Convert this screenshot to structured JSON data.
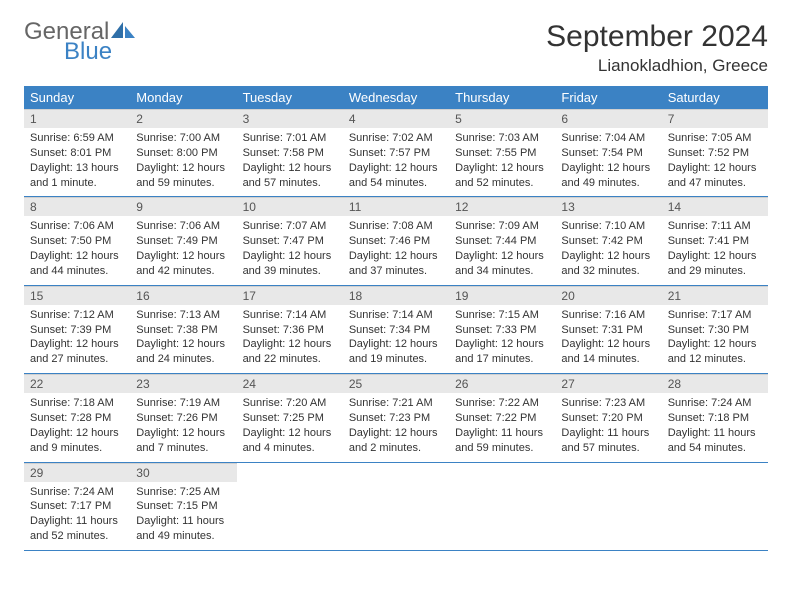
{
  "logo": {
    "line1": "General",
    "line2": "Blue"
  },
  "title": "September 2024",
  "location": "Lianokladhion, Greece",
  "colors": {
    "header_bg": "#3b82c4",
    "header_text": "#ffffff",
    "daynum_bg": "#e8e8e8",
    "rule": "#3b82c4",
    "logo_gray": "#666666",
    "logo_blue": "#3b82c4"
  },
  "weekdays": [
    "Sunday",
    "Monday",
    "Tuesday",
    "Wednesday",
    "Thursday",
    "Friday",
    "Saturday"
  ],
  "weeks": [
    [
      {
        "n": "1",
        "sr": "Sunrise: 6:59 AM",
        "ss": "Sunset: 8:01 PM",
        "dl": "Daylight: 13 hours and 1 minute."
      },
      {
        "n": "2",
        "sr": "Sunrise: 7:00 AM",
        "ss": "Sunset: 8:00 PM",
        "dl": "Daylight: 12 hours and 59 minutes."
      },
      {
        "n": "3",
        "sr": "Sunrise: 7:01 AM",
        "ss": "Sunset: 7:58 PM",
        "dl": "Daylight: 12 hours and 57 minutes."
      },
      {
        "n": "4",
        "sr": "Sunrise: 7:02 AM",
        "ss": "Sunset: 7:57 PM",
        "dl": "Daylight: 12 hours and 54 minutes."
      },
      {
        "n": "5",
        "sr": "Sunrise: 7:03 AM",
        "ss": "Sunset: 7:55 PM",
        "dl": "Daylight: 12 hours and 52 minutes."
      },
      {
        "n": "6",
        "sr": "Sunrise: 7:04 AM",
        "ss": "Sunset: 7:54 PM",
        "dl": "Daylight: 12 hours and 49 minutes."
      },
      {
        "n": "7",
        "sr": "Sunrise: 7:05 AM",
        "ss": "Sunset: 7:52 PM",
        "dl": "Daylight: 12 hours and 47 minutes."
      }
    ],
    [
      {
        "n": "8",
        "sr": "Sunrise: 7:06 AM",
        "ss": "Sunset: 7:50 PM",
        "dl": "Daylight: 12 hours and 44 minutes."
      },
      {
        "n": "9",
        "sr": "Sunrise: 7:06 AM",
        "ss": "Sunset: 7:49 PM",
        "dl": "Daylight: 12 hours and 42 minutes."
      },
      {
        "n": "10",
        "sr": "Sunrise: 7:07 AM",
        "ss": "Sunset: 7:47 PM",
        "dl": "Daylight: 12 hours and 39 minutes."
      },
      {
        "n": "11",
        "sr": "Sunrise: 7:08 AM",
        "ss": "Sunset: 7:46 PM",
        "dl": "Daylight: 12 hours and 37 minutes."
      },
      {
        "n": "12",
        "sr": "Sunrise: 7:09 AM",
        "ss": "Sunset: 7:44 PM",
        "dl": "Daylight: 12 hours and 34 minutes."
      },
      {
        "n": "13",
        "sr": "Sunrise: 7:10 AM",
        "ss": "Sunset: 7:42 PM",
        "dl": "Daylight: 12 hours and 32 minutes."
      },
      {
        "n": "14",
        "sr": "Sunrise: 7:11 AM",
        "ss": "Sunset: 7:41 PM",
        "dl": "Daylight: 12 hours and 29 minutes."
      }
    ],
    [
      {
        "n": "15",
        "sr": "Sunrise: 7:12 AM",
        "ss": "Sunset: 7:39 PM",
        "dl": "Daylight: 12 hours and 27 minutes."
      },
      {
        "n": "16",
        "sr": "Sunrise: 7:13 AM",
        "ss": "Sunset: 7:38 PM",
        "dl": "Daylight: 12 hours and 24 minutes."
      },
      {
        "n": "17",
        "sr": "Sunrise: 7:14 AM",
        "ss": "Sunset: 7:36 PM",
        "dl": "Daylight: 12 hours and 22 minutes."
      },
      {
        "n": "18",
        "sr": "Sunrise: 7:14 AM",
        "ss": "Sunset: 7:34 PM",
        "dl": "Daylight: 12 hours and 19 minutes."
      },
      {
        "n": "19",
        "sr": "Sunrise: 7:15 AM",
        "ss": "Sunset: 7:33 PM",
        "dl": "Daylight: 12 hours and 17 minutes."
      },
      {
        "n": "20",
        "sr": "Sunrise: 7:16 AM",
        "ss": "Sunset: 7:31 PM",
        "dl": "Daylight: 12 hours and 14 minutes."
      },
      {
        "n": "21",
        "sr": "Sunrise: 7:17 AM",
        "ss": "Sunset: 7:30 PM",
        "dl": "Daylight: 12 hours and 12 minutes."
      }
    ],
    [
      {
        "n": "22",
        "sr": "Sunrise: 7:18 AM",
        "ss": "Sunset: 7:28 PM",
        "dl": "Daylight: 12 hours and 9 minutes."
      },
      {
        "n": "23",
        "sr": "Sunrise: 7:19 AM",
        "ss": "Sunset: 7:26 PM",
        "dl": "Daylight: 12 hours and 7 minutes."
      },
      {
        "n": "24",
        "sr": "Sunrise: 7:20 AM",
        "ss": "Sunset: 7:25 PM",
        "dl": "Daylight: 12 hours and 4 minutes."
      },
      {
        "n": "25",
        "sr": "Sunrise: 7:21 AM",
        "ss": "Sunset: 7:23 PM",
        "dl": "Daylight: 12 hours and 2 minutes."
      },
      {
        "n": "26",
        "sr": "Sunrise: 7:22 AM",
        "ss": "Sunset: 7:22 PM",
        "dl": "Daylight: 11 hours and 59 minutes."
      },
      {
        "n": "27",
        "sr": "Sunrise: 7:23 AM",
        "ss": "Sunset: 7:20 PM",
        "dl": "Daylight: 11 hours and 57 minutes."
      },
      {
        "n": "28",
        "sr": "Sunrise: 7:24 AM",
        "ss": "Sunset: 7:18 PM",
        "dl": "Daylight: 11 hours and 54 minutes."
      }
    ],
    [
      {
        "n": "29",
        "sr": "Sunrise: 7:24 AM",
        "ss": "Sunset: 7:17 PM",
        "dl": "Daylight: 11 hours and 52 minutes."
      },
      {
        "n": "30",
        "sr": "Sunrise: 7:25 AM",
        "ss": "Sunset: 7:15 PM",
        "dl": "Daylight: 11 hours and 49 minutes."
      },
      null,
      null,
      null,
      null,
      null
    ]
  ]
}
